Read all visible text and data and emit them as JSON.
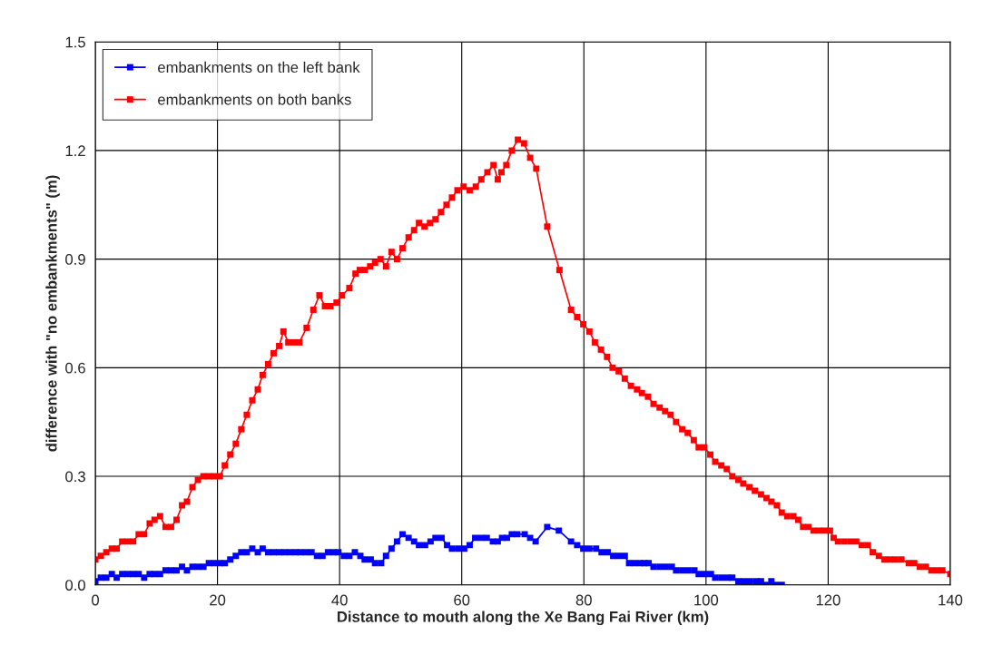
{
  "chart_data": {
    "type": "line",
    "xlabel": "Distance to mouth along the Xe Bang Fai River (km)",
    "ylabel": "difference with \"no embankments\" (m)",
    "xlim": [
      0,
      140
    ],
    "xticks": [
      0,
      20,
      40,
      60,
      80,
      100,
      120,
      140
    ],
    "ylim": [
      0,
      1.5
    ],
    "yticks": [
      {
        "value": 0,
        "label": "0.0"
      },
      0.3,
      0.6,
      0.9,
      1.2,
      1.5
    ],
    "grid": true,
    "legend": "top left",
    "marker": "square",
    "line_style": "solid",
    "series": [
      {
        "name": "embankments on the left bank",
        "color": "#0000ff",
        "x": [
          0,
          0.9,
          1.8,
          2.7,
          3.5,
          4.4,
          5.3,
          6.2,
          7.1,
          8.0,
          8.9,
          9.7,
          10.6,
          11.5,
          12.4,
          13.3,
          14.2,
          15.0,
          15.9,
          16.8,
          17.7,
          18.6,
          19.5,
          20.4,
          21.2,
          22.1,
          23.0,
          23.9,
          24.8,
          25.7,
          26.6,
          27.4,
          28.3,
          29.2,
          30.1,
          31.0,
          31.9,
          32.8,
          33.6,
          34.5,
          35.4,
          36.3,
          37.2,
          38.1,
          39.0,
          39.8,
          40.7,
          41.6,
          42.5,
          43.4,
          44.1,
          45.1,
          45.8,
          46.8,
          47.6,
          48.5,
          49.4,
          50.3,
          51.3,
          52.2,
          53.0,
          54.0,
          54.9,
          55.7,
          56.7,
          57.6,
          58.4,
          59.4,
          60.4,
          61.3,
          62.2,
          63.2,
          64.1,
          65.1,
          65.9,
          66.6,
          67.4,
          68.2,
          69.1,
          70.3,
          71.2,
          72.1,
          74.0,
          75.9,
          77.9,
          78.9,
          79.9,
          80.9,
          82.0,
          82.9,
          83.9,
          84.8,
          85.7,
          86.7,
          87.4,
          88.3,
          89.2,
          89.9,
          90.6,
          91.4,
          92.4,
          93.4,
          94.4,
          95.1,
          96.1,
          97.1,
          98.1,
          98.8,
          99.8,
          100.8,
          101.5,
          102.5,
          103.5,
          104.3,
          105.3,
          106.2,
          107.2,
          108.2,
          109.0,
          109.7,
          110.7,
          111.4,
          112.4
        ],
        "values": [
          0.01,
          0.02,
          0.02,
          0.03,
          0.02,
          0.03,
          0.03,
          0.03,
          0.03,
          0.02,
          0.03,
          0.03,
          0.03,
          0.04,
          0.04,
          0.04,
          0.05,
          0.04,
          0.05,
          0.05,
          0.05,
          0.06,
          0.06,
          0.06,
          0.06,
          0.07,
          0.08,
          0.09,
          0.09,
          0.1,
          0.09,
          0.1,
          0.09,
          0.09,
          0.09,
          0.09,
          0.09,
          0.09,
          0.09,
          0.09,
          0.09,
          0.08,
          0.08,
          0.09,
          0.09,
          0.09,
          0.08,
          0.08,
          0.09,
          0.08,
          0.07,
          0.07,
          0.06,
          0.06,
          0.08,
          0.1,
          0.12,
          0.14,
          0.13,
          0.12,
          0.11,
          0.11,
          0.12,
          0.13,
          0.13,
          0.11,
          0.1,
          0.1,
          0.1,
          0.11,
          0.13,
          0.13,
          0.13,
          0.12,
          0.12,
          0.13,
          0.13,
          0.14,
          0.14,
          0.14,
          0.13,
          0.12,
          0.16,
          0.15,
          0.12,
          0.11,
          0.1,
          0.1,
          0.1,
          0.09,
          0.09,
          0.08,
          0.08,
          0.08,
          0.06,
          0.06,
          0.06,
          0.06,
          0.06,
          0.05,
          0.05,
          0.05,
          0.05,
          0.04,
          0.04,
          0.04,
          0.04,
          0.03,
          0.03,
          0.03,
          0.02,
          0.02,
          0.02,
          0.02,
          0.01,
          0.01,
          0.01,
          0.01,
          0.01,
          0.0,
          0.01,
          0.0,
          0.0
        ]
      },
      {
        "name": "embankments on both banks",
        "color": "#ff0000",
        "x": [
          0,
          0.9,
          1.8,
          2.7,
          3.5,
          4.4,
          5.3,
          6.2,
          7.1,
          8.0,
          8.9,
          9.7,
          10.6,
          11.5,
          12.4,
          13.3,
          14.2,
          15.0,
          15.9,
          16.8,
          17.7,
          18.6,
          19.5,
          20.4,
          21.2,
          22.1,
          23.0,
          23.9,
          24.8,
          25.7,
          26.6,
          27.4,
          28.3,
          29.2,
          30.1,
          30.8,
          31.6,
          32.5,
          33.4,
          34.6,
          35.7,
          36.7,
          37.6,
          38.5,
          39.5,
          40.4,
          41.6,
          42.6,
          43.3,
          44.1,
          45.0,
          45.8,
          46.7,
          47.6,
          48.5,
          49.4,
          50.3,
          51.3,
          52.2,
          53.0,
          53.9,
          54.8,
          55.7,
          56.6,
          57.5,
          58.4,
          59.3,
          60.3,
          61.3,
          62.3,
          63.2,
          64.2,
          65.2,
          65.9,
          66.5,
          67.3,
          68.2,
          69.2,
          70.2,
          71.2,
          72.2,
          74.0,
          76.0,
          77.9,
          78.9,
          79.9,
          80.9,
          81.8,
          82.8,
          83.8,
          84.7,
          85.7,
          86.7,
          87.7,
          88.7,
          89.5,
          90.5,
          91.4,
          92.4,
          93.3,
          94.2,
          95.1,
          96.1,
          97.0,
          98.0,
          98.8,
          99.7,
          100.7,
          101.5,
          102.5,
          103.4,
          104.3,
          105.3,
          106.1,
          107.1,
          108.0,
          109.0,
          109.9,
          110.7,
          111.6,
          112.4,
          113.3,
          114.3,
          115.1,
          115.9,
          116.8,
          117.6,
          118.5,
          119.4,
          120.3,
          120.9,
          121.6,
          122.6,
          123.6,
          124.6,
          125.5,
          126.5,
          127.3,
          128.3,
          129.2,
          130.1,
          131.0,
          132.0,
          133.2,
          134.1,
          135.0,
          136.0,
          136.9,
          137.8,
          138.7,
          140.0
        ],
        "values": [
          0.07,
          0.08,
          0.09,
          0.1,
          0.1,
          0.12,
          0.12,
          0.12,
          0.14,
          0.14,
          0.17,
          0.18,
          0.19,
          0.16,
          0.16,
          0.18,
          0.22,
          0.23,
          0.27,
          0.29,
          0.3,
          0.3,
          0.3,
          0.3,
          0.33,
          0.36,
          0.39,
          0.43,
          0.47,
          0.51,
          0.54,
          0.58,
          0.61,
          0.64,
          0.66,
          0.7,
          0.67,
          0.67,
          0.67,
          0.71,
          0.76,
          0.8,
          0.77,
          0.77,
          0.78,
          0.8,
          0.82,
          0.86,
          0.87,
          0.87,
          0.88,
          0.89,
          0.9,
          0.88,
          0.92,
          0.9,
          0.93,
          0.96,
          0.98,
          1.0,
          0.99,
          1.0,
          1.01,
          1.03,
          1.05,
          1.07,
          1.09,
          1.1,
          1.09,
          1.1,
          1.12,
          1.14,
          1.16,
          1.12,
          1.14,
          1.16,
          1.2,
          1.23,
          1.22,
          1.18,
          1.15,
          0.99,
          0.87,
          0.76,
          0.74,
          0.72,
          0.7,
          0.67,
          0.65,
          0.63,
          0.6,
          0.59,
          0.57,
          0.55,
          0.54,
          0.53,
          0.52,
          0.5,
          0.49,
          0.48,
          0.47,
          0.45,
          0.43,
          0.42,
          0.4,
          0.38,
          0.38,
          0.36,
          0.34,
          0.33,
          0.32,
          0.3,
          0.29,
          0.28,
          0.27,
          0.26,
          0.25,
          0.24,
          0.23,
          0.22,
          0.2,
          0.19,
          0.19,
          0.18,
          0.16,
          0.16,
          0.15,
          0.15,
          0.15,
          0.15,
          0.13,
          0.12,
          0.12,
          0.12,
          0.12,
          0.11,
          0.11,
          0.09,
          0.08,
          0.07,
          0.07,
          0.07,
          0.07,
          0.06,
          0.06,
          0.05,
          0.05,
          0.04,
          0.04,
          0.04,
          0.03
        ]
      }
    ]
  }
}
